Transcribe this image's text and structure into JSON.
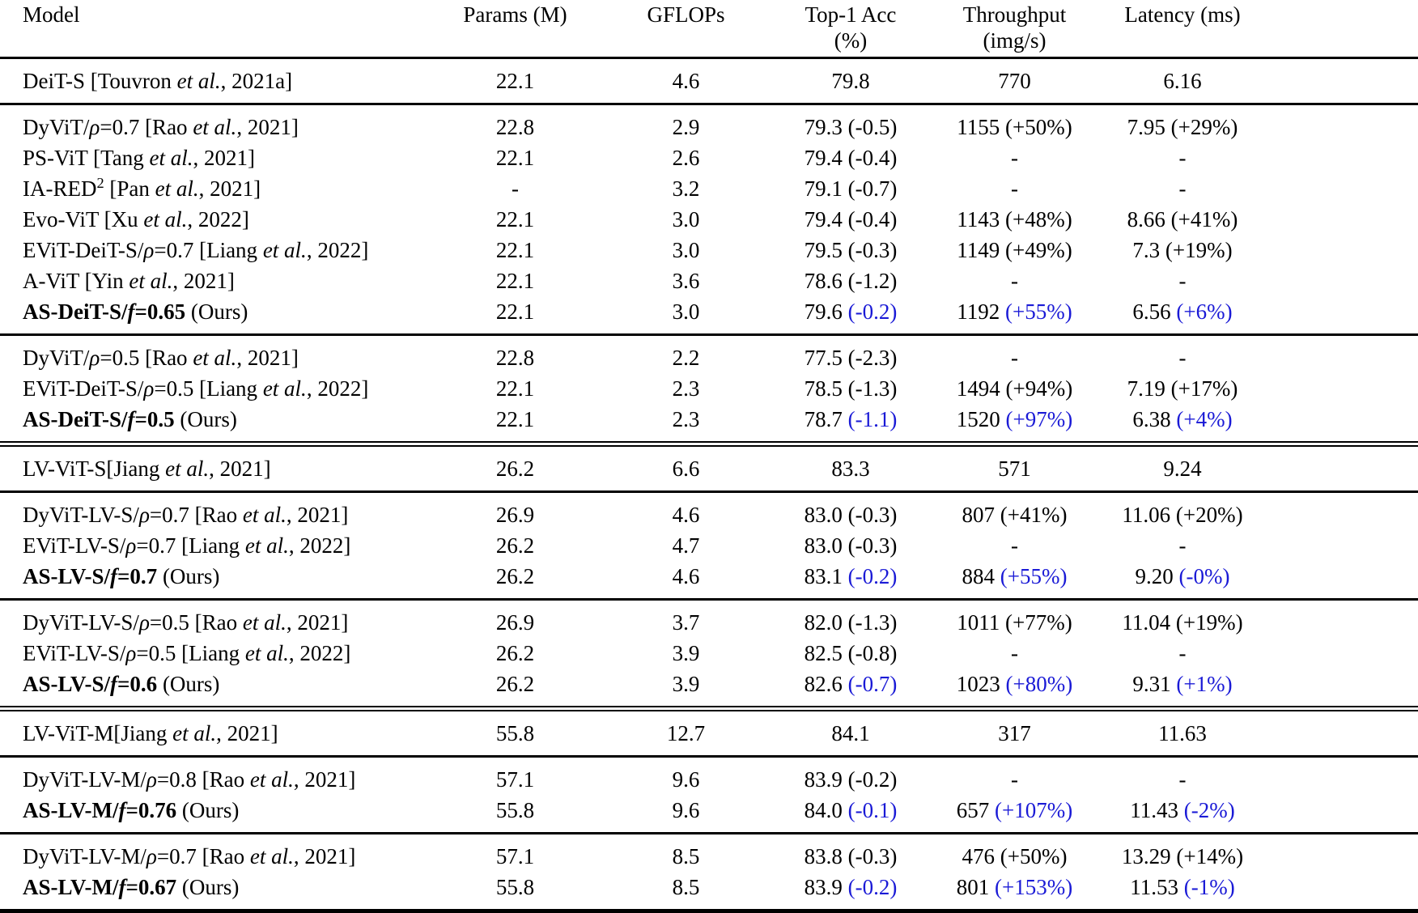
{
  "colors": {
    "delta_blue": "#1a1ad6",
    "text": "#000000",
    "rule": "#000000"
  },
  "header": {
    "columns": [
      {
        "id": "model",
        "label": "Model",
        "sub": ""
      },
      {
        "id": "params",
        "label": "Params (M)",
        "sub": ""
      },
      {
        "id": "gflops",
        "label": "GFLOPs",
        "sub": ""
      },
      {
        "id": "top1-acc",
        "label": "Top-1 Acc",
        "sub": "(%)"
      },
      {
        "id": "throughput",
        "label": "Throughput",
        "sub": "(img/s)"
      },
      {
        "id": "latency",
        "label": "Latency (ms)",
        "sub": ""
      }
    ]
  },
  "sections": [
    {
      "rule": "single",
      "rows": [
        {
          "model": [
            {
              "t": "DeiT-S [Touvron "
            },
            {
              "t": "et al.",
              "i": 1
            },
            {
              "t": ", 2021a]"
            }
          ],
          "ours": false,
          "params": "22.1",
          "gflops": "4.6",
          "acc": [
            "79.8",
            ""
          ],
          "tp": [
            "770",
            ""
          ],
          "lat": [
            "6.16",
            ""
          ]
        }
      ]
    },
    {
      "rule": "single",
      "rows": [
        {
          "model": [
            {
              "t": "DyViT/"
            },
            {
              "t": "ρ",
              "i": 1
            },
            {
              "t": "=0.7 [Rao "
            },
            {
              "t": "et al.",
              "i": 1
            },
            {
              "t": ", 2021]"
            }
          ],
          "ours": false,
          "params": "22.8",
          "gflops": "2.9",
          "acc": [
            "79.3",
            "(-0.5)"
          ],
          "tp": [
            "1155",
            "(+50%)"
          ],
          "lat": [
            "7.95",
            "(+29%)"
          ]
        },
        {
          "model": [
            {
              "t": "PS-ViT [Tang "
            },
            {
              "t": "et al.",
              "i": 1
            },
            {
              "t": ", 2021]"
            }
          ],
          "ours": false,
          "params": "22.1",
          "gflops": "2.6",
          "acc": [
            "79.4",
            "(-0.4)"
          ],
          "tp": [
            "-",
            ""
          ],
          "lat": [
            "-",
            ""
          ]
        },
        {
          "model": [
            {
              "t": "IA-RED"
            },
            {
              "t": "2",
              "sup": 1
            },
            {
              "t": " [Pan "
            },
            {
              "t": "et al.",
              "i": 1
            },
            {
              "t": ", 2021]"
            }
          ],
          "ours": false,
          "params": "-",
          "gflops": "3.2",
          "acc": [
            "79.1",
            "(-0.7)"
          ],
          "tp": [
            "-",
            ""
          ],
          "lat": [
            "-",
            ""
          ]
        },
        {
          "model": [
            {
              "t": "Evo-ViT [Xu "
            },
            {
              "t": "et al.",
              "i": 1
            },
            {
              "t": ", 2022]"
            }
          ],
          "ours": false,
          "params": "22.1",
          "gflops": "3.0",
          "acc": [
            "79.4",
            "(-0.4)"
          ],
          "tp": [
            "1143",
            "(+48%)"
          ],
          "lat": [
            "8.66",
            "(+41%)"
          ]
        },
        {
          "model": [
            {
              "t": "EViT-DeiT-S/"
            },
            {
              "t": "ρ",
              "i": 1
            },
            {
              "t": "=0.7 [Liang "
            },
            {
              "t": "et al.",
              "i": 1
            },
            {
              "t": ", 2022]"
            }
          ],
          "ours": false,
          "params": "22.1",
          "gflops": "3.0",
          "acc": [
            "79.5",
            "(-0.3)"
          ],
          "tp": [
            "1149",
            "(+49%)"
          ],
          "lat": [
            "7.3",
            "(+19%)"
          ]
        },
        {
          "model": [
            {
              "t": "A-ViT [Yin "
            },
            {
              "t": "et al.",
              "i": 1
            },
            {
              "t": ", 2021]"
            }
          ],
          "ours": false,
          "params": "22.1",
          "gflops": "3.6",
          "acc": [
            "78.6",
            "(-1.2)"
          ],
          "tp": [
            "-",
            ""
          ],
          "lat": [
            "-",
            ""
          ]
        },
        {
          "model": [
            {
              "t": "AS-DeiT-S/",
              "b": 1
            },
            {
              "t": "f",
              "b": 1,
              "i": 1
            },
            {
              "t": "=0.65",
              "b": 1
            },
            {
              "t": " (Ours)"
            }
          ],
          "ours": true,
          "params": "22.1",
          "gflops": "3.0",
          "acc": [
            "79.6",
            "(-0.2)"
          ],
          "tp": [
            "1192",
            "(+55%)"
          ],
          "lat": [
            "6.56",
            "(+6%)"
          ]
        }
      ]
    },
    {
      "rule": "single",
      "rows": [
        {
          "model": [
            {
              "t": "DyViT/"
            },
            {
              "t": "ρ",
              "i": 1
            },
            {
              "t": "=0.5 [Rao "
            },
            {
              "t": "et al.",
              "i": 1
            },
            {
              "t": ", 2021]"
            }
          ],
          "ours": false,
          "params": "22.8",
          "gflops": "2.2",
          "acc": [
            "77.5",
            "(-2.3)"
          ],
          "tp": [
            "-",
            ""
          ],
          "lat": [
            "-",
            ""
          ]
        },
        {
          "model": [
            {
              "t": "EViT-DeiT-S/"
            },
            {
              "t": "ρ",
              "i": 1
            },
            {
              "t": "=0.5 [Liang "
            },
            {
              "t": "et al.",
              "i": 1
            },
            {
              "t": ", 2022]"
            }
          ],
          "ours": false,
          "params": "22.1",
          "gflops": "2.3",
          "acc": [
            "78.5",
            "(-1.3)"
          ],
          "tp": [
            "1494",
            "(+94%)"
          ],
          "lat": [
            "7.19",
            "(+17%)"
          ]
        },
        {
          "model": [
            {
              "t": "AS-DeiT-S/",
              "b": 1
            },
            {
              "t": "f",
              "b": 1,
              "i": 1
            },
            {
              "t": "=0.5",
              "b": 1
            },
            {
              "t": " (Ours)"
            }
          ],
          "ours": true,
          "params": "22.1",
          "gflops": "2.3",
          "acc": [
            "78.7",
            "(-1.1)"
          ],
          "tp": [
            "1520",
            "(+97%)"
          ],
          "lat": [
            "6.38",
            "(+4%)"
          ]
        }
      ]
    },
    {
      "rule": "double",
      "rows": [
        {
          "model": [
            {
              "t": "LV-ViT-S[Jiang "
            },
            {
              "t": "et al.",
              "i": 1
            },
            {
              "t": ", 2021]"
            }
          ],
          "ours": false,
          "params": "26.2",
          "gflops": "6.6",
          "acc": [
            "83.3",
            ""
          ],
          "tp": [
            "571",
            ""
          ],
          "lat": [
            "9.24",
            ""
          ]
        }
      ]
    },
    {
      "rule": "single",
      "rows": [
        {
          "model": [
            {
              "t": "DyViT-LV-S/"
            },
            {
              "t": "ρ",
              "i": 1
            },
            {
              "t": "=0.7 [Rao "
            },
            {
              "t": "et al.",
              "i": 1
            },
            {
              "t": ", 2021]"
            }
          ],
          "ours": false,
          "params": "26.9",
          "gflops": "4.6",
          "acc": [
            "83.0",
            "(-0.3)"
          ],
          "tp": [
            "807",
            "(+41%)"
          ],
          "lat": [
            "11.06",
            "(+20%)"
          ]
        },
        {
          "model": [
            {
              "t": "EViT-LV-S/"
            },
            {
              "t": "ρ",
              "i": 1
            },
            {
              "t": "=0.7 [Liang "
            },
            {
              "t": "et al.",
              "i": 1
            },
            {
              "t": ", 2022]"
            }
          ],
          "ours": false,
          "params": "26.2",
          "gflops": "4.7",
          "acc": [
            "83.0",
            "(-0.3)"
          ],
          "tp": [
            "-",
            ""
          ],
          "lat": [
            "-",
            ""
          ]
        },
        {
          "model": [
            {
              "t": "AS-LV-S/",
              "b": 1
            },
            {
              "t": "f",
              "b": 1,
              "i": 1
            },
            {
              "t": "=0.7",
              "b": 1
            },
            {
              "t": " (Ours)"
            }
          ],
          "ours": true,
          "params": "26.2",
          "gflops": "4.6",
          "acc": [
            "83.1",
            "(-0.2)"
          ],
          "tp": [
            "884",
            "(+55%)"
          ],
          "lat": [
            "9.20",
            "(-0%)"
          ]
        }
      ]
    },
    {
      "rule": "single",
      "rows": [
        {
          "model": [
            {
              "t": "DyViT-LV-S/"
            },
            {
              "t": "ρ",
              "i": 1
            },
            {
              "t": "=0.5 [Rao "
            },
            {
              "t": "et al.",
              "i": 1
            },
            {
              "t": ", 2021]"
            }
          ],
          "ours": false,
          "params": "26.9",
          "gflops": "3.7",
          "acc": [
            "82.0",
            "(-1.3)"
          ],
          "tp": [
            "1011",
            "(+77%)"
          ],
          "lat": [
            "11.04",
            "(+19%)"
          ]
        },
        {
          "model": [
            {
              "t": "EViT-LV-S/"
            },
            {
              "t": "ρ",
              "i": 1
            },
            {
              "t": "=0.5 [Liang "
            },
            {
              "t": "et al.",
              "i": 1
            },
            {
              "t": ", 2022]"
            }
          ],
          "ours": false,
          "params": "26.2",
          "gflops": "3.9",
          "acc": [
            "82.5",
            "(-0.8)"
          ],
          "tp": [
            "-",
            ""
          ],
          "lat": [
            "-",
            ""
          ]
        },
        {
          "model": [
            {
              "t": "AS-LV-S/",
              "b": 1
            },
            {
              "t": "f",
              "b": 1,
              "i": 1
            },
            {
              "t": "=0.6",
              "b": 1
            },
            {
              "t": " (Ours)"
            }
          ],
          "ours": true,
          "params": "26.2",
          "gflops": "3.9",
          "acc": [
            "82.6",
            "(-0.7)"
          ],
          "tp": [
            "1023",
            "(+80%)"
          ],
          "lat": [
            "9.31",
            "(+1%)"
          ]
        }
      ]
    },
    {
      "rule": "double",
      "rows": [
        {
          "model": [
            {
              "t": "LV-ViT-M[Jiang "
            },
            {
              "t": "et al.",
              "i": 1
            },
            {
              "t": ", 2021]"
            }
          ],
          "ours": false,
          "params": "55.8",
          "gflops": "12.7",
          "acc": [
            "84.1",
            ""
          ],
          "tp": [
            "317",
            ""
          ],
          "lat": [
            "11.63",
            ""
          ]
        }
      ]
    },
    {
      "rule": "single",
      "rows": [
        {
          "model": [
            {
              "t": "DyViT-LV-M/"
            },
            {
              "t": "ρ",
              "i": 1
            },
            {
              "t": "=0.8 [Rao "
            },
            {
              "t": "et al.",
              "i": 1
            },
            {
              "t": ", 2021]"
            }
          ],
          "ours": false,
          "params": "57.1",
          "gflops": "9.6",
          "acc": [
            "83.9",
            "(-0.2)"
          ],
          "tp": [
            "-",
            ""
          ],
          "lat": [
            "-",
            ""
          ]
        },
        {
          "model": [
            {
              "t": "AS-LV-M/",
              "b": 1
            },
            {
              "t": "f",
              "b": 1,
              "i": 1
            },
            {
              "t": "=0.76",
              "b": 1
            },
            {
              "t": " (Ours)"
            }
          ],
          "ours": true,
          "params": "55.8",
          "gflops": "9.6",
          "acc": [
            "84.0",
            "(-0.1)"
          ],
          "tp": [
            "657",
            "(+107%)"
          ],
          "lat": [
            "11.43",
            "(-2%)"
          ]
        }
      ]
    },
    {
      "rule": "single",
      "rows": [
        {
          "model": [
            {
              "t": "DyViT-LV-M/"
            },
            {
              "t": "ρ",
              "i": 1
            },
            {
              "t": "=0.7 [Rao "
            },
            {
              "t": "et al.",
              "i": 1
            },
            {
              "t": ", 2021]"
            }
          ],
          "ours": false,
          "params": "57.1",
          "gflops": "8.5",
          "acc": [
            "83.8",
            "(-0.3)"
          ],
          "tp": [
            "476",
            "(+50%)"
          ],
          "lat": [
            "13.29",
            "(+14%)"
          ]
        },
        {
          "model": [
            {
              "t": "AS-LV-M/",
              "b": 1
            },
            {
              "t": "f",
              "b": 1,
              "i": 1
            },
            {
              "t": "=0.67",
              "b": 1
            },
            {
              "t": " (Ours)"
            }
          ],
          "ours": true,
          "params": "55.8",
          "gflops": "8.5",
          "acc": [
            "83.9",
            "(-0.2)"
          ],
          "tp": [
            "801",
            "(+153%)"
          ],
          "lat": [
            "11.53",
            "(-1%)"
          ]
        }
      ]
    }
  ]
}
